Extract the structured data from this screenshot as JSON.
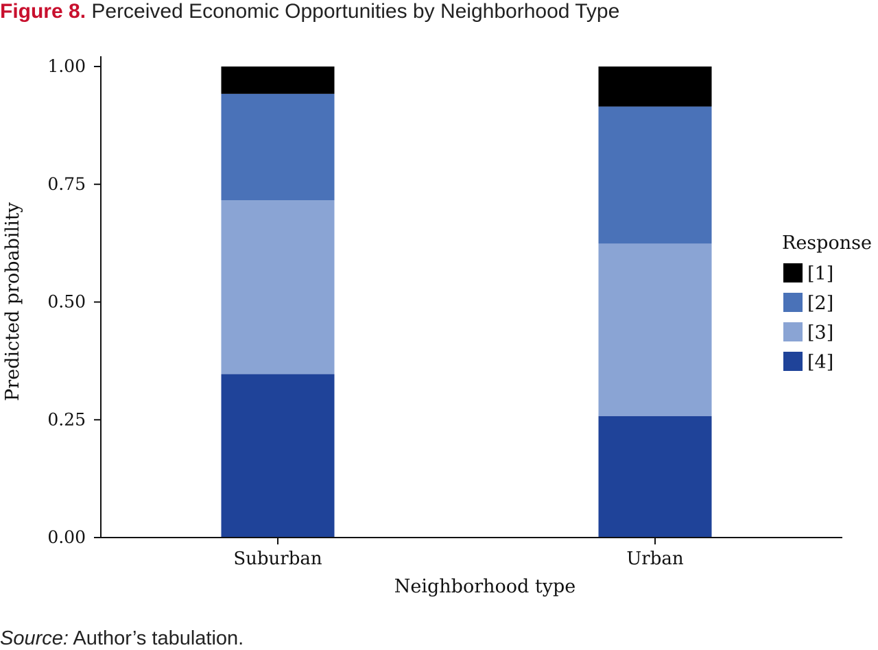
{
  "figure": {
    "label": "Figure 8.",
    "title": "Perceived Economic Opportunities by Neighborhood Type",
    "source_label": "Source:",
    "source_text": "Author’s tabulation."
  },
  "chart_data": {
    "type": "bar",
    "stacked": true,
    "categories": [
      "Suburban",
      "Urban"
    ],
    "xlabel": "Neighborhood type",
    "ylabel": "Predicted probability",
    "ylim": [
      0,
      1
    ],
    "yticks": [
      "0.00",
      "0.25",
      "0.50",
      "0.75",
      "1.00"
    ],
    "legend": {
      "title": "Response",
      "placement": "right"
    },
    "series": [
      {
        "name": "[4]",
        "color": "#1f4399",
        "values": [
          0.347,
          0.258
        ]
      },
      {
        "name": "[3]",
        "color": "#8aa4d4",
        "values": [
          0.369,
          0.366
        ]
      },
      {
        "name": "[2]",
        "color": "#4a72b8",
        "values": [
          0.226,
          0.291
        ]
      },
      {
        "name": "[1]",
        "color": "#000000",
        "values": [
          0.058,
          0.085
        ]
      }
    ]
  }
}
